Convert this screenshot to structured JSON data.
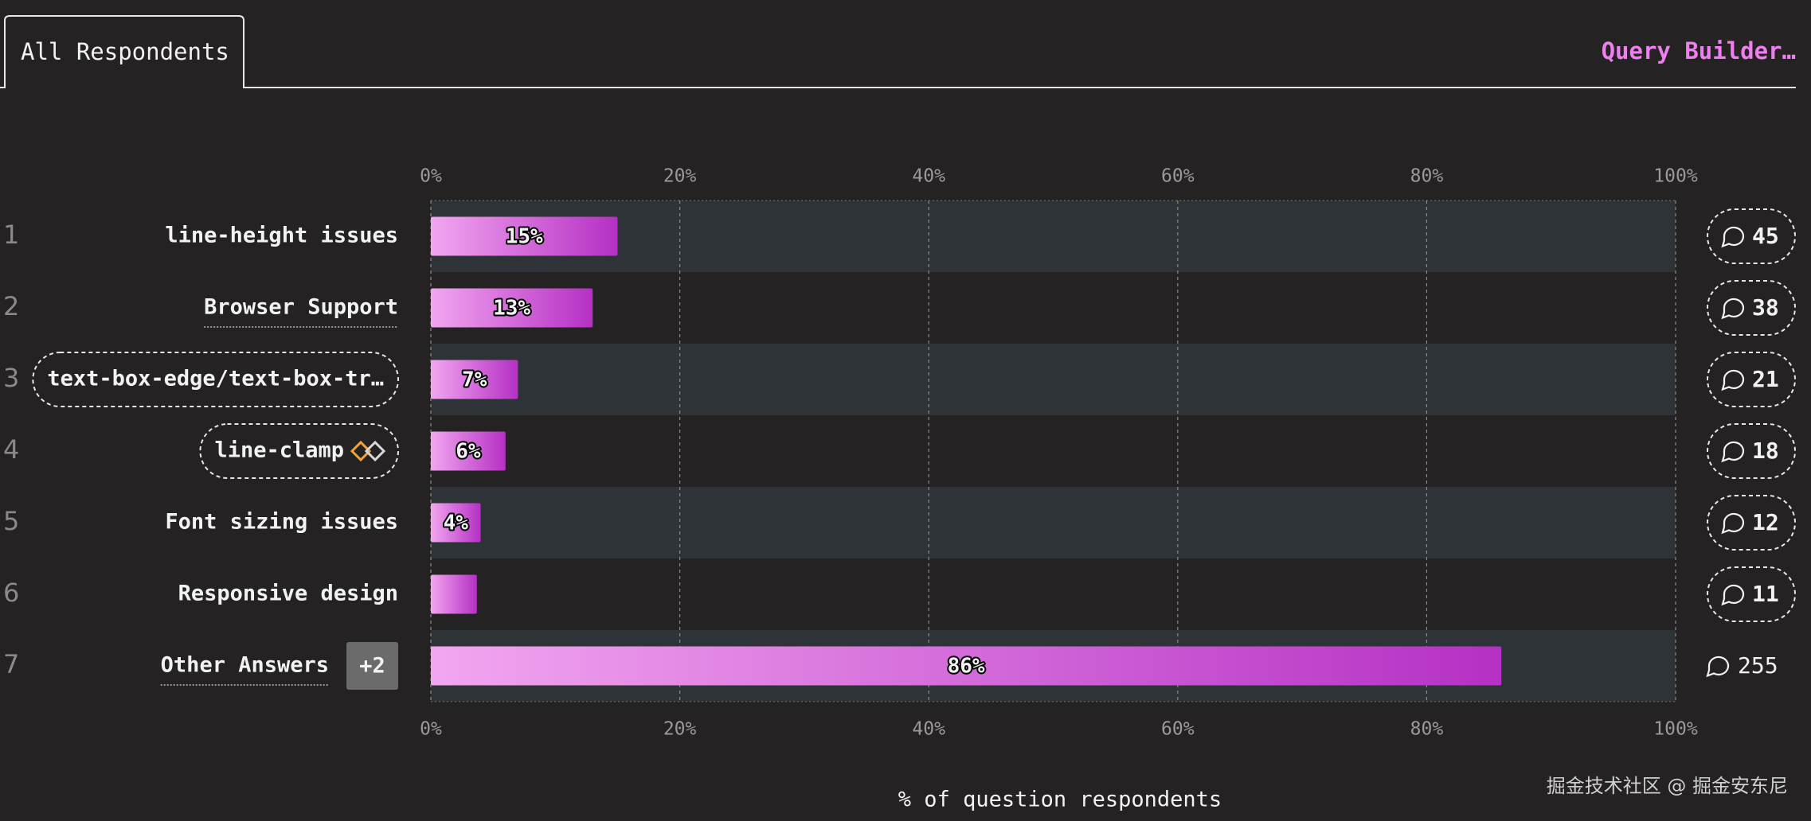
{
  "tabs": {
    "active": "All Respondents",
    "action": "Query Builder…"
  },
  "chart_data": {
    "type": "bar",
    "orientation": "horizontal",
    "ranks": [
      1,
      2,
      3,
      4,
      5,
      6,
      7
    ],
    "categories": [
      "line-height issues",
      "Browser Support",
      "text-box-edge/text-box-tr…",
      "line-clamp",
      "Font sizing issues",
      "Responsive design",
      "Other Answers"
    ],
    "values": [
      15,
      13,
      7,
      6,
      4,
      3.7,
      86
    ],
    "value_labels": [
      "15%",
      "13%",
      "7%",
      "6%",
      "4%",
      null,
      "86%"
    ],
    "comments": [
      45,
      38,
      21,
      18,
      12,
      11,
      255
    ],
    "extra_badge": "+2",
    "xlim": [
      0,
      100
    ],
    "xticks": [
      {
        "value": 0,
        "label": "0%"
      },
      {
        "value": 20,
        "label": "20%"
      },
      {
        "value": 40,
        "label": "40%"
      },
      {
        "value": 60,
        "label": "60%"
      },
      {
        "value": 80,
        "label": "80%"
      },
      {
        "value": 100,
        "label": "100%"
      }
    ],
    "xlabel": "% of question respondents",
    "grid": true,
    "gradient": [
      "#f2a6f0",
      "#b530c4"
    ]
  },
  "watermark": "掘金技术社区 @ 掘金安东尼"
}
